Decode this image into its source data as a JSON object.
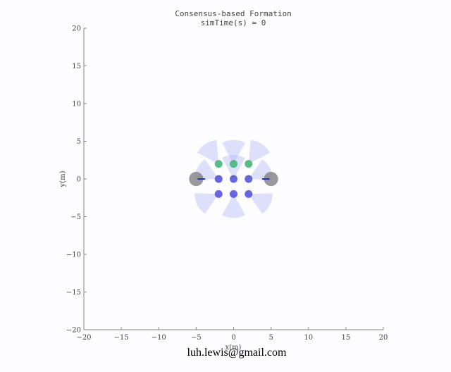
{
  "chart_data": {
    "type": "scatter",
    "title": "Consensus-based Formation",
    "subtitle": "simTime(s) = 0",
    "xlabel": "x(m)",
    "ylabel": "y(m)",
    "xlim": [
      -20,
      20
    ],
    "ylim": [
      -20,
      20
    ],
    "xticks": [
      -20,
      -15,
      -10,
      -5,
      0,
      5,
      10,
      15,
      20
    ],
    "yticks": [
      -20,
      -15,
      -10,
      -5,
      0,
      5,
      10,
      15,
      20
    ],
    "grid": false,
    "obstacles": [
      {
        "x": -5,
        "y": 0,
        "color": "#888888"
      },
      {
        "x": 5,
        "y": 0,
        "color": "#888888"
      }
    ],
    "agents": [
      {
        "x": -2,
        "y": 2,
        "color": "#3cb371"
      },
      {
        "x": 0,
        "y": 2,
        "color": "#3cb371"
      },
      {
        "x": 2,
        "y": 2,
        "color": "#3cb371"
      },
      {
        "x": -2,
        "y": 0,
        "color": "#4b4bdc"
      },
      {
        "x": 0,
        "y": 0,
        "color": "#4b4bdc"
      },
      {
        "x": 2,
        "y": 0,
        "color": "#4b4bdc"
      },
      {
        "x": -2,
        "y": -2,
        "color": "#4b4bdc"
      },
      {
        "x": 0,
        "y": -2,
        "color": "#4b4bdc"
      },
      {
        "x": 2,
        "y": -2,
        "color": "#4b4bdc"
      }
    ],
    "headings": [
      {
        "x1": -4.8,
        "x2": -3.8,
        "y": 0
      },
      {
        "x1": 3.8,
        "x2": 4.8,
        "y": 0
      }
    ],
    "sensor_color": "#a0a8f0"
  },
  "watermark": "luh.lewis@gmail.com"
}
